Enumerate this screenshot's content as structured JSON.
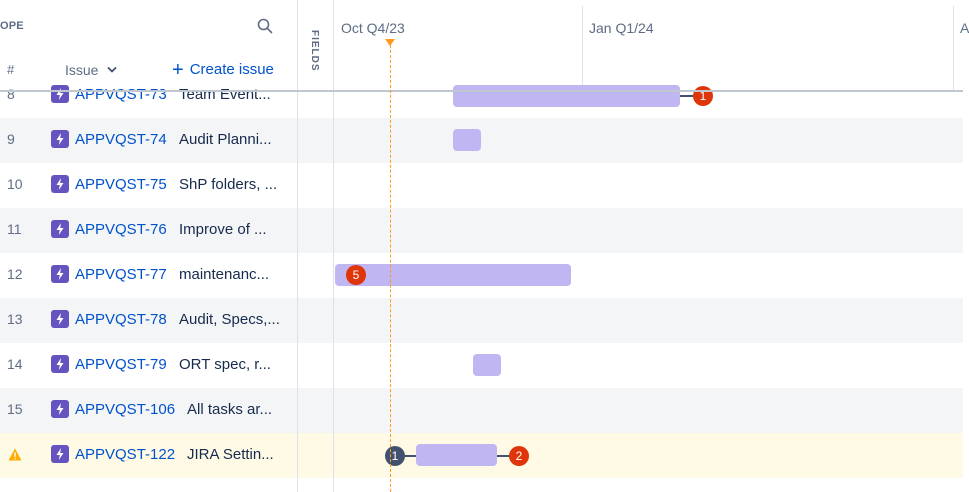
{
  "header": {
    "scope_label": "OPE",
    "hash_label": "#",
    "issue_column_label": "Issue",
    "create_issue_label": "Create issue",
    "fields_label": "FIELDS",
    "quarters": [
      "Oct Q4/23",
      "Jan Q1/24",
      "A"
    ]
  },
  "rows": [
    {
      "num": "8",
      "key": "APPVQST-73",
      "summary": "Team Event..."
    },
    {
      "num": "9",
      "key": "APPVQST-74",
      "summary": "Audit Planni..."
    },
    {
      "num": "10",
      "key": "APPVQST-75",
      "summary": "ShP folders, ..."
    },
    {
      "num": "11",
      "key": "APPVQST-76",
      "summary": "Improve of ..."
    },
    {
      "num": "12",
      "key": "APPVQST-77",
      "summary": "maintenanc..."
    },
    {
      "num": "13",
      "key": "APPVQST-78",
      "summary": "Audit, Specs,..."
    },
    {
      "num": "14",
      "key": "APPVQST-79",
      "summary": "ORT spec, r..."
    },
    {
      "num": "15",
      "key": "APPVQST-106",
      "summary": "All tasks ar..."
    },
    {
      "num": "",
      "key": "APPVQST-122",
      "summary": "JIRA Settin..."
    }
  ],
  "badges": {
    "row8_end": "1",
    "row12_start": "5",
    "row122_start": "1",
    "row122_end": "2"
  },
  "colors": {
    "bar": "#c0b6f2",
    "issue_icon": "#6554c0",
    "link": "#0052cc",
    "today": "#ff991f",
    "badge_red": "#de350b",
    "badge_dark": "#42526e",
    "warning": "#ffab00"
  },
  "icons": [
    "search-icon",
    "chevron-down-icon",
    "plus-icon",
    "lightning-icon",
    "warning-icon"
  ]
}
